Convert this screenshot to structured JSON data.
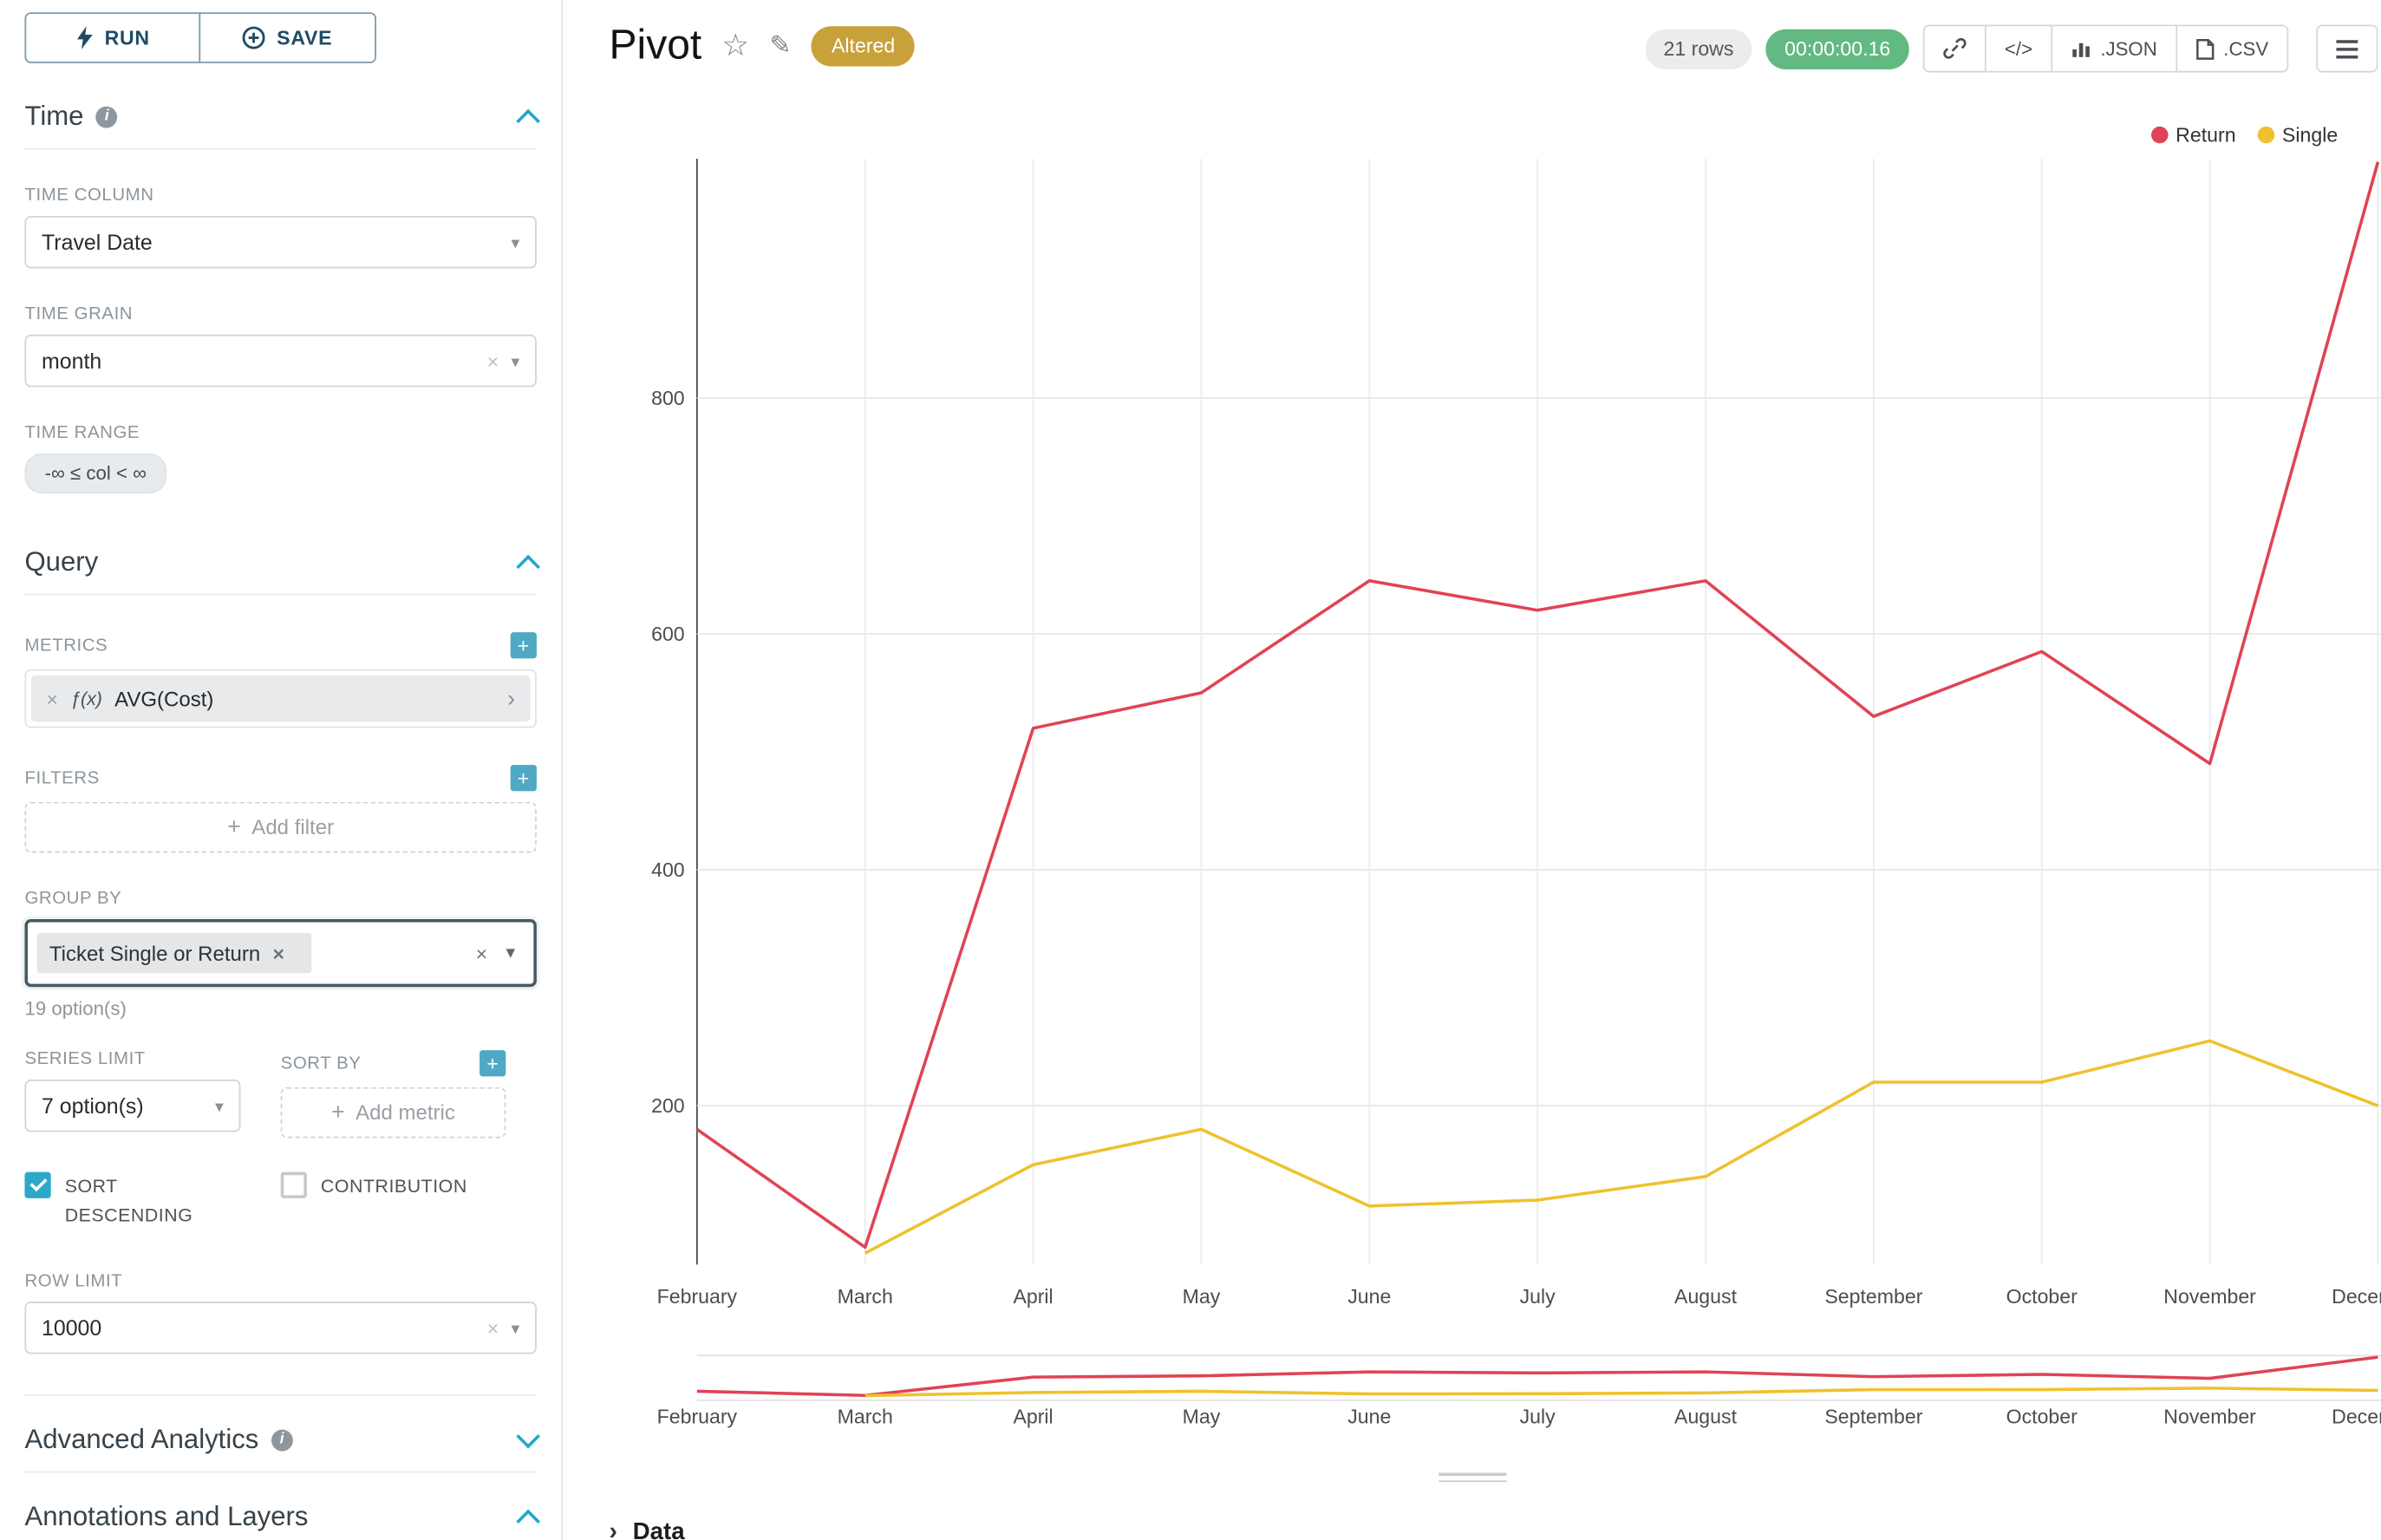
{
  "icons": {
    "clear": "×",
    "caret": "▾",
    "caret_solid": "▼",
    "plus": "+",
    "star": "☆",
    "edit": "✎",
    "chevron_right": "›",
    "info": "i",
    "fx": "ƒ(x)"
  },
  "sidebar": {
    "run_label": "RUN",
    "save_label": "SAVE",
    "time": {
      "title": "Time",
      "time_column_label": "TIME COLUMN",
      "time_column_value": "Travel Date",
      "time_grain_label": "TIME GRAIN",
      "time_grain_value": "month",
      "time_range_label": "TIME RANGE",
      "time_range_value": "-∞ ≤ col < ∞"
    },
    "query": {
      "title": "Query",
      "metrics_label": "METRICS",
      "metric_value": "AVG(Cost)",
      "filters_label": "FILTERS",
      "add_filter_label": "Add filter",
      "group_by_label": "GROUP BY",
      "group_by_value": "Ticket Single or Return",
      "group_by_hint": "19 option(s)",
      "series_limit_label": "SERIES LIMIT",
      "series_limit_value": "7 option(s)",
      "sort_by_label": "SORT BY",
      "add_metric_label": "Add metric",
      "sort_descending_label": "SORT DESCENDING",
      "contribution_label": "CONTRIBUTION",
      "row_limit_label": "ROW LIMIT",
      "row_limit_value": "10000"
    },
    "advanced": {
      "title": "Advanced Analytics"
    },
    "annotations": {
      "title": "Annotations and Layers"
    }
  },
  "header": {
    "title": "Pivot",
    "altered_badge": "Altered",
    "rows_badge": "21 rows",
    "timer_badge": "00:00:00.16",
    "code_label": "</>",
    "json_label": ".JSON",
    "csv_label": ".CSV"
  },
  "data_panel": {
    "title": "Data"
  },
  "chart_data": {
    "type": "line",
    "x": [
      "February",
      "March",
      "April",
      "May",
      "June",
      "July",
      "August",
      "September",
      "October",
      "November",
      "December"
    ],
    "series": [
      {
        "name": "Return",
        "color": "#E04355",
        "values": [
          180,
          80,
          520,
          550,
          645,
          620,
          645,
          530,
          585,
          490,
          1000
        ]
      },
      {
        "name": "Single",
        "color": "#EFC12E",
        "values": [
          null,
          75,
          150,
          180,
          115,
          120,
          140,
          220,
          220,
          255,
          200
        ]
      }
    ],
    "yticks": [
      200,
      400,
      600,
      800
    ],
    "ylim": [
      0,
      1000
    ],
    "xlabel": "",
    "ylabel": "",
    "title": "",
    "grid": true,
    "legend_position": "top-right",
    "has_brush_minimap": true
  }
}
